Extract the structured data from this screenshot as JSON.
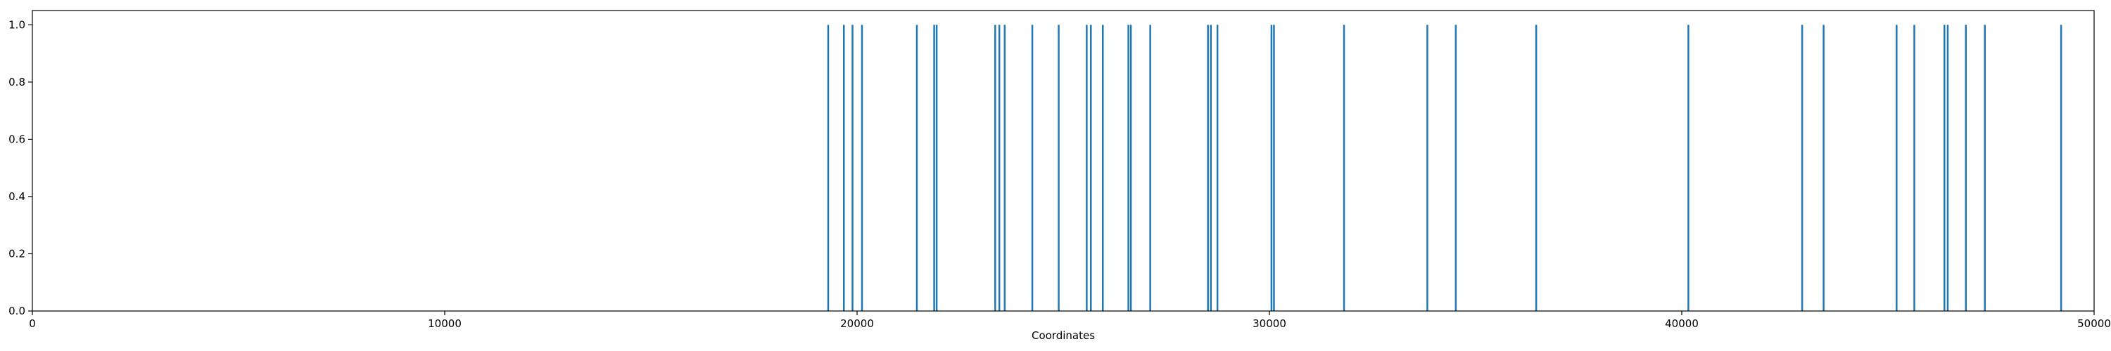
{
  "chart_data": {
    "type": "bar",
    "title": "",
    "xlabel": "Coordinates",
    "ylabel": "",
    "xlim": [
      0,
      50000
    ],
    "ylim": [
      0,
      1.05
    ],
    "grid": false,
    "bar_color": "#1f77b4",
    "x_ticks": [
      0,
      10000,
      20000,
      30000,
      40000,
      50000
    ],
    "x_tick_labels": [
      "0",
      "10000",
      "20000",
      "30000",
      "40000",
      "50000"
    ],
    "y_ticks": [
      0.0,
      0.2,
      0.4,
      0.6,
      0.8,
      1.0
    ],
    "y_tick_labels": [
      "0.0",
      "0.2",
      "0.4",
      "0.6",
      "0.8",
      "1.0"
    ],
    "x": [
      19300,
      19680,
      19890,
      20120,
      21450,
      21870,
      21930,
      23350,
      23450,
      23580,
      24250,
      24890,
      25570,
      25670,
      25960,
      26580,
      26640,
      27110,
      28510,
      28580,
      28740,
      30050,
      30110,
      31810,
      33830,
      34520,
      36470,
      40160,
      42920,
      43440,
      45210,
      45640,
      46370,
      46450,
      46890,
      47350,
      49200
    ],
    "values": [
      1,
      1,
      1,
      1,
      1,
      1,
      1,
      1,
      1,
      1,
      1,
      1,
      1,
      1,
      1,
      1,
      1,
      1,
      1,
      1,
      1,
      1,
      1,
      1,
      1,
      1,
      1,
      1,
      1,
      1,
      1,
      1,
      1,
      1,
      1,
      1,
      1
    ]
  }
}
